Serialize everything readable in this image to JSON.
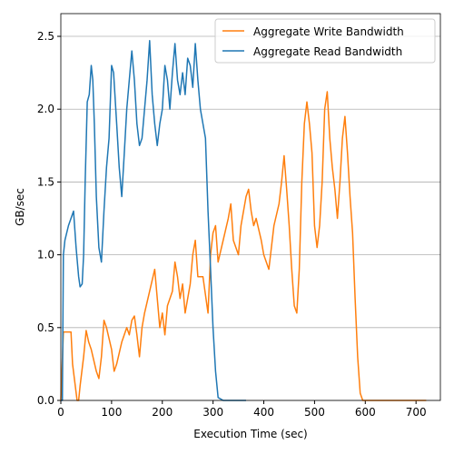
{
  "chart_data": {
    "type": "line",
    "xlabel": "Execution Time (sec)",
    "ylabel": "GB/sec",
    "xlim": [
      0,
      748
    ],
    "ylim": [
      0,
      2.656
    ],
    "xticks": [
      0,
      100,
      200,
      300,
      400,
      500,
      600,
      700
    ],
    "yticks": [
      {
        "value": 0,
        "label": "0.0"
      },
      0.5,
      {
        "value": 1,
        "label": "1.0"
      },
      1.5,
      {
        "value": 2,
        "label": "2.0"
      },
      2.5
    ],
    "grid": "y",
    "legend": "upper right",
    "series": [
      {
        "name": "Aggregate Write Bandwidth",
        "color": "#ff7f0e",
        "x": [
          0,
          5,
          20,
          23,
          32,
          35,
          38,
          45,
          50,
          55,
          60,
          70,
          75,
          80,
          85,
          90,
          100,
          105,
          110,
          120,
          130,
          135,
          140,
          145,
          150,
          155,
          160,
          165,
          175,
          185,
          190,
          195,
          200,
          205,
          210,
          220,
          225,
          230,
          235,
          240,
          245,
          255,
          260,
          265,
          270,
          280,
          290,
          295,
          300,
          305,
          310,
          320,
          330,
          335,
          340,
          345,
          350,
          355,
          365,
          370,
          375,
          380,
          385,
          395,
          400,
          410,
          415,
          420,
          430,
          435,
          440,
          445,
          450,
          455,
          460,
          465,
          470,
          475,
          480,
          485,
          490,
          495,
          500,
          505,
          510,
          515,
          520,
          525,
          530,
          535,
          540,
          545,
          550,
          555,
          560,
          565,
          570,
          575,
          580,
          585,
          590,
          595,
          720
        ],
        "values": [
          0,
          0.47,
          0.47,
          0.25,
          0,
          0,
          0.1,
          0.3,
          0.48,
          0.4,
          0.35,
          0.2,
          0.15,
          0.3,
          0.55,
          0.5,
          0.35,
          0.2,
          0.25,
          0.4,
          0.5,
          0.45,
          0.55,
          0.58,
          0.45,
          0.3,
          0.5,
          0.6,
          0.75,
          0.9,
          0.7,
          0.5,
          0.6,
          0.45,
          0.65,
          0.75,
          0.95,
          0.85,
          0.7,
          0.8,
          0.6,
          0.8,
          1.0,
          1.1,
          0.85,
          0.85,
          0.6,
          1.0,
          1.15,
          1.2,
          0.95,
          1.1,
          1.25,
          1.35,
          1.1,
          1.05,
          1.0,
          1.2,
          1.4,
          1.45,
          1.3,
          1.2,
          1.25,
          1.1,
          1.0,
          0.9,
          1.05,
          1.2,
          1.35,
          1.5,
          1.68,
          1.45,
          1.2,
          0.9,
          0.65,
          0.6,
          0.9,
          1.5,
          1.9,
          2.05,
          1.9,
          1.7,
          1.2,
          1.05,
          1.2,
          1.5,
          2.0,
          2.12,
          1.8,
          1.6,
          1.45,
          1.25,
          1.5,
          1.8,
          1.95,
          1.7,
          1.4,
          1.15,
          0.7,
          0.3,
          0.05,
          0,
          0
        ]
      },
      {
        "name": "Aggregate Read Bandwidth",
        "color": "#1f77b4",
        "x": [
          0,
          3,
          5,
          8,
          15,
          20,
          25,
          30,
          35,
          38,
          42,
          45,
          48,
          52,
          56,
          60,
          63,
          66,
          70,
          75,
          80,
          85,
          90,
          95,
          100,
          104,
          110,
          115,
          120,
          125,
          130,
          135,
          140,
          145,
          150,
          155,
          160,
          165,
          170,
          175,
          180,
          185,
          190,
          195,
          200,
          205,
          210,
          215,
          220,
          225,
          230,
          235,
          240,
          245,
          250,
          255,
          260,
          265,
          270,
          275,
          280,
          285,
          290,
          295,
          300,
          305,
          310,
          320,
          365
        ],
        "values": [
          0,
          0,
          1.0,
          1.1,
          1.2,
          1.25,
          1.3,
          1.05,
          0.85,
          0.78,
          0.8,
          1.0,
          1.5,
          2.05,
          2.1,
          2.3,
          2.2,
          1.9,
          1.4,
          1.05,
          0.95,
          1.3,
          1.6,
          1.8,
          2.3,
          2.25,
          1.9,
          1.6,
          1.4,
          1.7,
          2.0,
          2.2,
          2.4,
          2.2,
          1.9,
          1.75,
          1.8,
          2.0,
          2.2,
          2.47,
          2.1,
          1.9,
          1.75,
          1.9,
          2.0,
          2.3,
          2.2,
          2.0,
          2.25,
          2.45,
          2.2,
          2.1,
          2.25,
          2.1,
          2.35,
          2.3,
          2.15,
          2.45,
          2.2,
          2.0,
          1.9,
          1.8,
          1.3,
          0.9,
          0.5,
          0.2,
          0.02,
          0,
          0
        ]
      }
    ]
  }
}
